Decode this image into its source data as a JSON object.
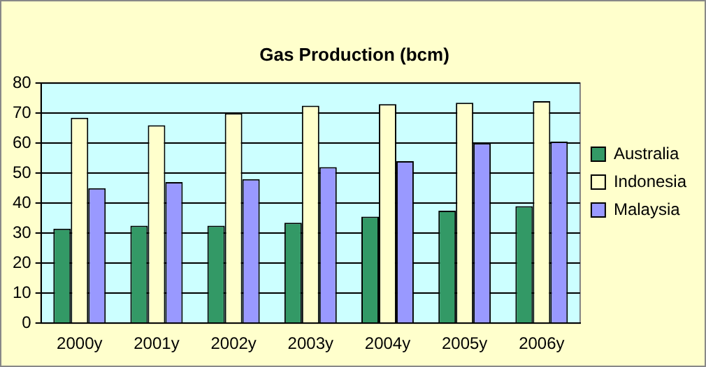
{
  "chart_data": {
    "type": "bar",
    "title": "Gas Production (bcm)",
    "categories": [
      "2000y",
      "2001y",
      "2002y",
      "2003y",
      "2004y",
      "2005y",
      "2006y"
    ],
    "series": [
      {
        "name": "Australia",
        "color": "#339966",
        "values": [
          31.5,
          32.5,
          32.5,
          33.5,
          35.5,
          37.5,
          39
        ]
      },
      {
        "name": "Indonesia",
        "color": "#ffffcc",
        "values": [
          68.5,
          66,
          70,
          72.5,
          73,
          73.5,
          74
        ]
      },
      {
        "name": "Malaysia",
        "color": "#9999ff",
        "values": [
          45,
          47,
          48,
          52,
          54,
          60,
          60.5
        ]
      }
    ],
    "ylim": [
      0,
      80
    ],
    "yticks": [
      0,
      10,
      20,
      30,
      40,
      50,
      60,
      70,
      80
    ],
    "grid": "y",
    "legend": "right"
  }
}
